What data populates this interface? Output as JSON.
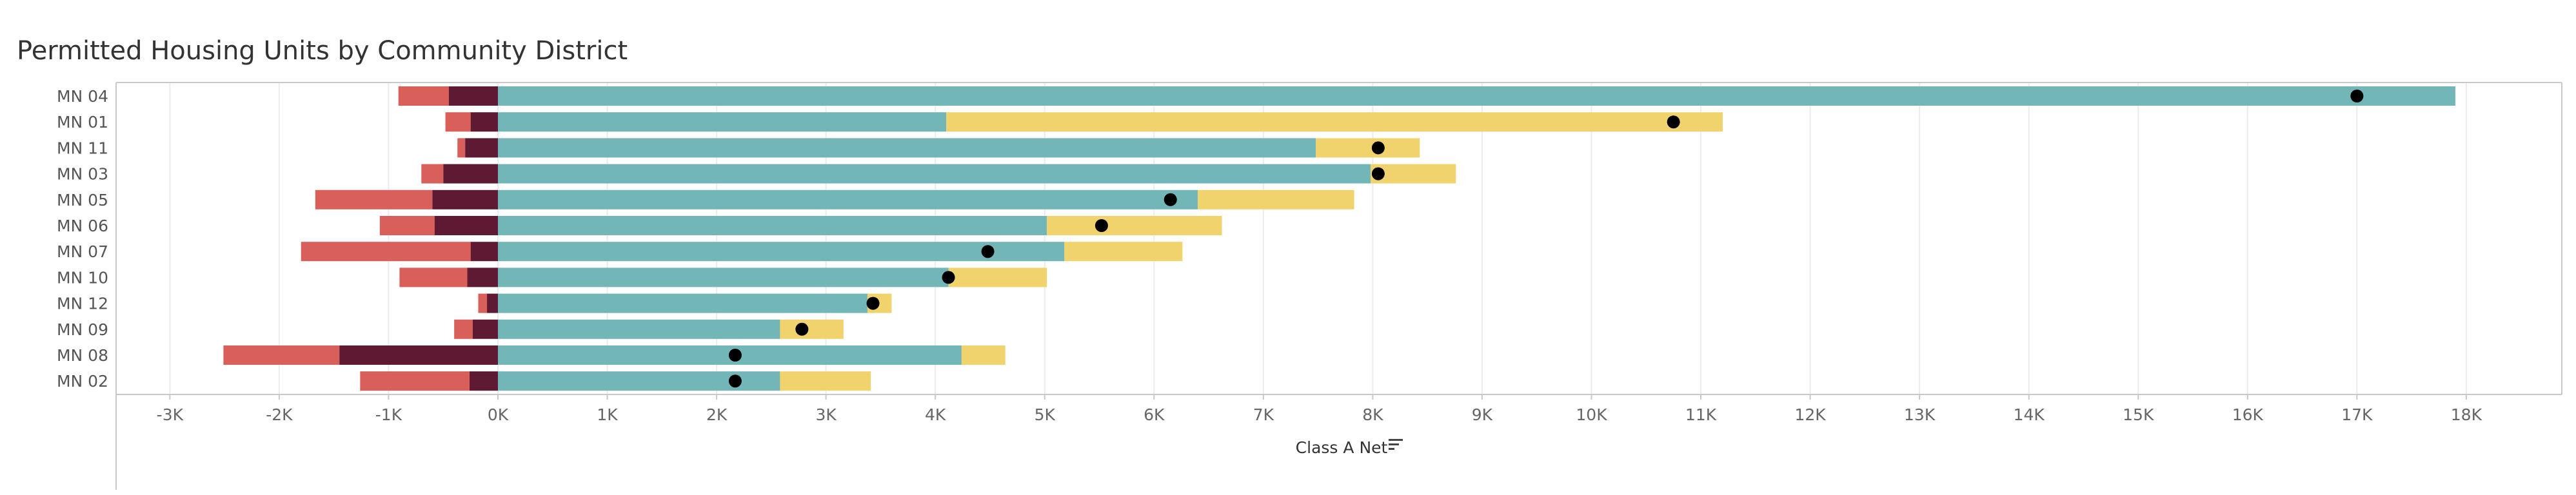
{
  "title": "Permitted Housing Units by Community District",
  "colors": {
    "teal": "#72b6b7",
    "yellow": "#f1d36e",
    "dark_red": "#5f1a33",
    "light_red": "#d95f5a",
    "dot": "#000000",
    "grid": "#ececec",
    "axis": "#c8c8c8"
  },
  "icons": {
    "sort_icon": "sort-icon"
  },
  "chart_data": {
    "type": "bar",
    "orientation": "horizontal",
    "stacked": true,
    "categories": [
      "MN 04",
      "MN 01",
      "MN 11",
      "MN 03",
      "MN 05",
      "MN 06",
      "MN 07",
      "MN 10",
      "MN 12",
      "MN 09",
      "MN 08",
      "MN 02"
    ],
    "series": [
      {
        "color": "#72b6b7",
        "values": [
          17900,
          4100,
          7480,
          7980,
          6400,
          5020,
          5180,
          4120,
          3380,
          2580,
          4240,
          2580
        ]
      },
      {
        "color": "#f1d36e",
        "values": [
          0,
          7100,
          950,
          780,
          1430,
          1600,
          1080,
          900,
          220,
          580,
          400,
          830
        ]
      },
      {
        "color": "#5f1a33",
        "values": [
          -450,
          -250,
          -300,
          -500,
          -600,
          -580,
          -250,
          -280,
          -100,
          -230,
          -1450,
          -260
        ]
      },
      {
        "color": "#d95f5a",
        "values": [
          -460,
          -230,
          -70,
          -200,
          -1070,
          -500,
          -1550,
          -620,
          -80,
          -170,
          -1060,
          -1000
        ]
      }
    ],
    "dot_values": [
      17000,
      10750,
      8050,
      8050,
      6150,
      5520,
      4480,
      4120,
      3430,
      2780,
      2170,
      2170
    ],
    "xlabel": "Class A Net",
    "ylabel": "",
    "xlim": [
      -3600,
      19200
    ],
    "x_ticks": [
      -3000,
      -2000,
      -1000,
      0,
      1000,
      2000,
      3000,
      4000,
      5000,
      6000,
      7000,
      8000,
      9000,
      10000,
      11000,
      12000,
      13000,
      14000,
      15000,
      16000,
      17000,
      18000
    ],
    "x_tick_labels": [
      "-3K",
      "-2K",
      "-1K",
      "0K",
      "1K",
      "2K",
      "3K",
      "4K",
      "5K",
      "6K",
      "7K",
      "8K",
      "9K",
      "10K",
      "11K",
      "12K",
      "13K",
      "14K",
      "15K",
      "16K",
      "17K",
      "18K"
    ],
    "grid": true,
    "legend": "none"
  }
}
